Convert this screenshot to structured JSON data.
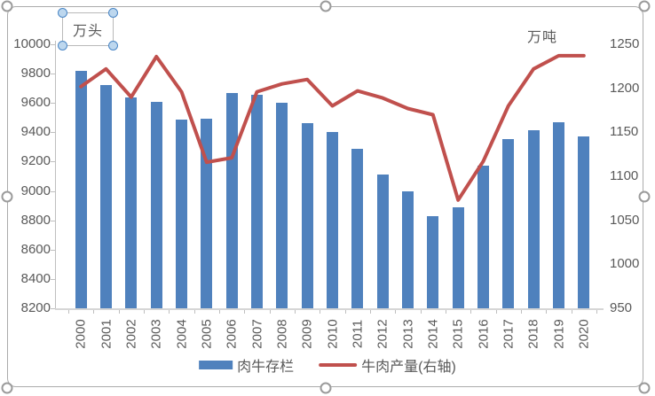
{
  "chart_data": {
    "type": "combo-bar-line",
    "categories": [
      "2000",
      "2001",
      "2002",
      "2003",
      "2004",
      "2005",
      "2006",
      "2007",
      "2008",
      "2009",
      "2010",
      "2011",
      "2012",
      "2013",
      "2014",
      "2015",
      "2016",
      "2017",
      "2018",
      "2019",
      "2020"
    ],
    "series": [
      {
        "name": "肉牛存栏",
        "type": "bar",
        "axis": "left",
        "color": "#4F81BD",
        "values": [
          9820,
          9725,
          9640,
          9605,
          9485,
          9495,
          9665,
          9655,
          9600,
          9465,
          9400,
          9285,
          9110,
          9000,
          8830,
          8890,
          9175,
          9355,
          9415,
          9470,
          9370
        ]
      },
      {
        "name": "牛肉产量(右轴)",
        "type": "line",
        "axis": "right",
        "color": "#C0504D",
        "values": [
          1202,
          1222,
          1190,
          1236,
          1196,
          1116,
          1121,
          1196,
          1205,
          1210,
          1180,
          1197,
          1189,
          1177,
          1170,
          1073,
          1117,
          1180,
          1222,
          1237,
          1237
        ]
      }
    ],
    "left_axis": {
      "unit": "万头",
      "min": 8200,
      "max": 10000,
      "step": 200,
      "ticks": [
        10000,
        9800,
        9600,
        9400,
        9200,
        9000,
        8800,
        8600,
        8400,
        8200
      ]
    },
    "right_axis": {
      "unit": "万吨",
      "min": 950,
      "max": 1250,
      "step": 50,
      "ticks": [
        1250,
        1200,
        1150,
        1100,
        1050,
        1000,
        950
      ]
    },
    "grid": false,
    "legend_position": "bottom",
    "title": ""
  },
  "colors": {
    "bar": "#4F81BD",
    "line": "#C0504D",
    "axis_text": "#595959",
    "axis_line": "#BFBFBF",
    "frame_border": "#ABABAB"
  }
}
